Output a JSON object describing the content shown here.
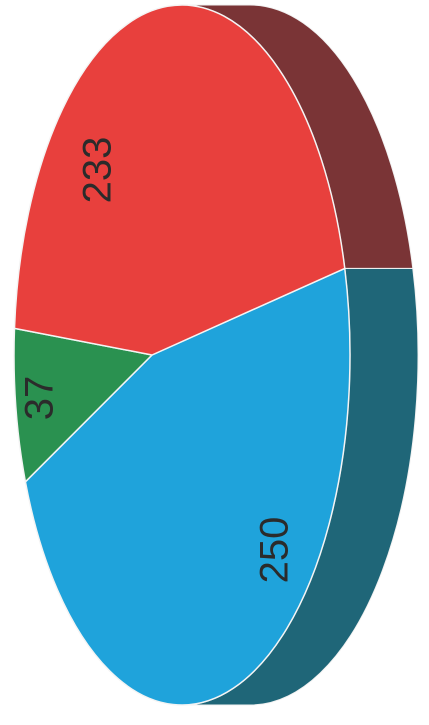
{
  "chart_data": {
    "type": "pie",
    "title": "",
    "slices": [
      {
        "label": "233",
        "value": 233,
        "color": "#e8403d",
        "side_color": "#7a3436"
      },
      {
        "label": "250",
        "value": 250,
        "color": "#1fa3db",
        "side_color": "#1f6678"
      },
      {
        "label": "37",
        "value": 37,
        "color": "#2a9150",
        "side_color": "#1f6b3c"
      }
    ],
    "three_d": true,
    "orientation": "rotated-90",
    "legend": "none"
  }
}
